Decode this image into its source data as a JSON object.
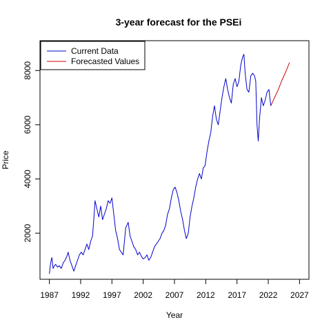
{
  "chart_data": {
    "type": "line",
    "title": "3-year forecast for the PSEi",
    "xlabel": "Year",
    "ylabel": "Price",
    "xlim": [
      1985.5,
      2028.5
    ],
    "ylim": [
      300,
      9100
    ],
    "x_ticks": [
      1987,
      1992,
      1997,
      2002,
      2007,
      2012,
      2017,
      2022,
      2027
    ],
    "y_ticks": [
      2000,
      4000,
      6000,
      8000
    ],
    "grid": false,
    "legend_position": "top-left",
    "series": [
      {
        "name": "Current Data",
        "color": "#0000cc",
        "x": [
          1987.0,
          1987.2,
          1987.4,
          1987.6,
          1987.8,
          1988.0,
          1988.3,
          1988.6,
          1988.9,
          1989.2,
          1989.5,
          1989.8,
          1990.0,
          1990.3,
          1990.6,
          1990.9,
          1991.2,
          1991.5,
          1991.8,
          1992.1,
          1992.4,
          1992.7,
          1993.0,
          1993.3,
          1993.6,
          1993.9,
          1994.1,
          1994.3,
          1994.6,
          1994.9,
          1995.2,
          1995.5,
          1995.8,
          1996.1,
          1996.4,
          1996.7,
          1997.0,
          1997.3,
          1997.6,
          1997.9,
          1998.2,
          1998.5,
          1998.8,
          1999.2,
          1999.6,
          1999.9,
          2000.2,
          2000.5,
          2000.8,
          2001.1,
          2001.4,
          2001.7,
          2002.0,
          2002.3,
          2002.6,
          2002.9,
          2003.2,
          2003.5,
          2003.8,
          2004.1,
          2004.4,
          2004.7,
          2005.0,
          2005.3,
          2005.6,
          2005.9,
          2006.2,
          2006.5,
          2006.8,
          2007.1,
          2007.4,
          2007.7,
          2008.0,
          2008.3,
          2008.6,
          2008.9,
          2009.2,
          2009.5,
          2009.8,
          2010.1,
          2010.4,
          2010.7,
          2011.0,
          2011.3,
          2011.6,
          2011.9,
          2012.2,
          2012.5,
          2012.8,
          2013.1,
          2013.4,
          2013.7,
          2014.0,
          2014.3,
          2014.6,
          2014.9,
          2015.2,
          2015.5,
          2015.8,
          2016.1,
          2016.4,
          2016.7,
          2017.0,
          2017.3,
          2017.6,
          2017.9,
          2018.1,
          2018.3,
          2018.6,
          2018.9,
          2019.2,
          2019.5,
          2019.8,
          2020.0,
          2020.2,
          2020.4,
          2020.6,
          2020.9,
          2021.2,
          2021.5,
          2021.8,
          2022.1,
          2022.4
        ],
        "y": [
          500,
          900,
          1100,
          700,
          800,
          850,
          750,
          800,
          700,
          900,
          1000,
          1150,
          1300,
          1000,
          800,
          600,
          800,
          1000,
          1200,
          1300,
          1200,
          1400,
          1600,
          1400,
          1700,
          1900,
          2500,
          3200,
          2900,
          2600,
          3000,
          2500,
          2700,
          2900,
          3200,
          3100,
          3300,
          2700,
          2100,
          1800,
          1400,
          1300,
          1200,
          2200,
          2400,
          1900,
          1700,
          1500,
          1400,
          1200,
          1300,
          1150,
          1050,
          1100,
          1200,
          1000,
          1100,
          1300,
          1500,
          1600,
          1700,
          1800,
          2000,
          2100,
          2300,
          2700,
          2900,
          3300,
          3600,
          3700,
          3500,
          3200,
          2800,
          2500,
          2100,
          1800,
          2000,
          2600,
          3000,
          3300,
          3700,
          4000,
          4200,
          4000,
          4400,
          4500,
          5000,
          5400,
          5700,
          6300,
          6700,
          6200,
          6000,
          6500,
          7000,
          7400,
          7700,
          7300,
          7000,
          6800,
          7500,
          7700,
          7400,
          7600,
          8200,
          8500,
          8600,
          7900,
          7300,
          7200,
          7800,
          7900,
          7800,
          7600,
          6000,
          5400,
          6200,
          7000,
          6700,
          6900,
          7200,
          7300,
          6700
        ],
        "y_note": "approximate"
      },
      {
        "name": "Forecasted Values",
        "color": "#cc0000",
        "x": [
          2022.4,
          2023.0,
          2023.6,
          2024.2,
          2024.8,
          2025.4
        ],
        "y": [
          6700,
          7000,
          7300,
          7650,
          7950,
          8300
        ]
      }
    ]
  }
}
